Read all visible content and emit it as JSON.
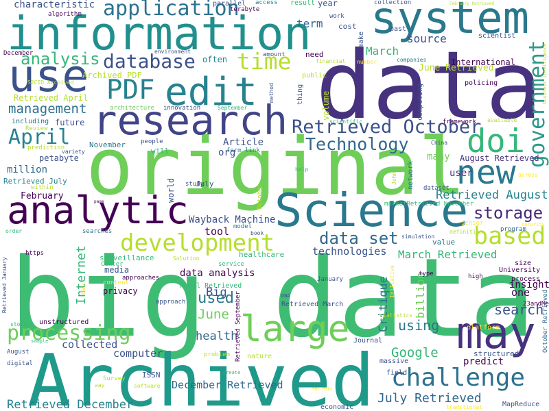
{
  "words": [
    "data",
    "big data",
    "original",
    "Archived",
    "information",
    "system",
    "use",
    "edit",
    "research",
    "doi",
    "new",
    "analytic",
    "Science",
    "may",
    "large",
    "challenge",
    "development",
    "time",
    "database",
    "PDF",
    "application",
    "April",
    "processing",
    "based",
    "government",
    "analysis",
    "management",
    "Retrieved October",
    "Technology",
    "data set",
    "Internet",
    "Big",
    "used",
    "June",
    "health",
    "computer",
    "collected",
    "Google",
    "search",
    "Critique",
    "using",
    "billion",
    "one",
    "insight",
    "storage",
    "July Retrieved",
    "Retrieved December",
    "December Retrieved",
    "MapReduce",
    "March Retrieved",
    "technologies",
    "source",
    "March",
    "June Retrieved",
    "term",
    "International",
    "policing",
    "future",
    "November",
    "Article",
    "org",
    "petabyte",
    "million",
    "Retrieved July",
    "February",
    "Wayback Machine",
    "tool",
    "many",
    "August Retrieved",
    "user",
    "Retrieved August",
    "Archived PDF",
    "Retrieved April",
    "characteristic",
    "algorithm",
    "parallel",
    "terabyte",
    "access",
    "year",
    "result",
    "cost",
    "collection",
    "work",
    "scientist",
    "past",
    "make",
    "often",
    "need",
    "amount",
    "public",
    "companies",
    "financial",
    "number",
    "thing",
    "volume",
    "computing",
    "framework",
    "available",
    "scientific",
    "innovation",
    "September",
    "architecture",
    "including",
    "Review",
    "prediction",
    "variety",
    "people",
    "will",
    "form link",
    "study",
    "within",
    "world",
    "July",
    "October",
    "help",
    "network",
    "dataset",
    "John",
    "China",
    "marketRetrieved November",
    "across",
    "security",
    "sensor",
    "definition",
    "program",
    "simulation",
    "value",
    "model",
    "book",
    "searches",
    "order",
    "https",
    "surveillance",
    "Center",
    "Solution",
    "service",
    "healthcare",
    "media",
    "data analysis",
    "approaches",
    "content",
    "April Retrieved",
    "privacy",
    "approach",
    "DNA",
    "day",
    "Retrieved March",
    "January",
    "type",
    "high",
    "University",
    "process",
    "size",
    "23andMe",
    "October Retrieved",
    "platform",
    "Journal",
    "statistics",
    "Initiative",
    "predict",
    "structured",
    "massive",
    "field",
    "economic",
    "traditional",
    "PMC PMID",
    "create",
    "ISSN",
    "Survey",
    "way",
    "software",
    "nature",
    "problem",
    "digital",
    "sample",
    "August",
    "store",
    "unstructured",
    "Retrieved January",
    "Retrieved September",
    "environment",
    "S2CID Archived",
    "December",
    "business intelligence",
    "February Retrieved",
    "method",
    "page"
  ]
}
